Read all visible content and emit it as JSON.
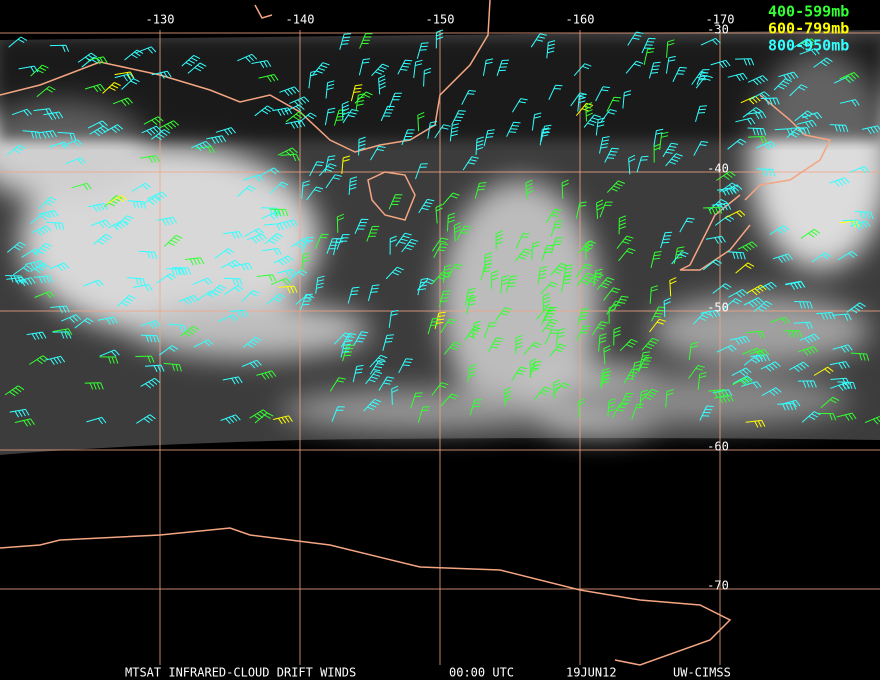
{
  "map": {
    "lon_lines": [
      -130,
      -140,
      -150,
      -160,
      -170
    ],
    "lat_lines": [
      -30,
      -40,
      -50,
      -60,
      -70
    ],
    "legend": [
      {
        "label": "400-599mb",
        "color": "#33ff33"
      },
      {
        "label": "600-799mb",
        "color": "#ffff00"
      },
      {
        "label": "800-950mb",
        "color": "#33ffff"
      }
    ]
  },
  "footer": {
    "product": "MTSAT INFRARED-CLOUD DRIFT WINDS",
    "time": "00:00 UTC",
    "date": "19JUN12",
    "source": "UW-CIMSS"
  }
}
